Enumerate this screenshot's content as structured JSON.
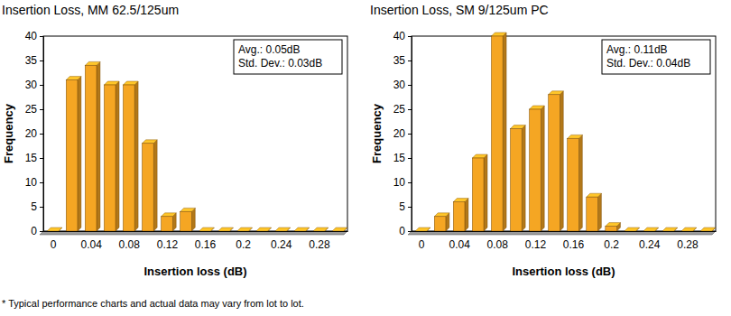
{
  "chart_data": [
    {
      "type": "bar",
      "title": "Insertion Loss, MM 62.5/125um",
      "x_label": "Insertion loss (dB)",
      "y_label": "Frequency",
      "x": [
        0,
        0.02,
        0.04,
        0.06,
        0.08,
        0.1,
        0.12,
        0.14,
        0.16,
        0.18,
        0.2,
        0.22,
        0.24,
        0.26,
        0.28,
        0.3
      ],
      "values": [
        0,
        31,
        34,
        30,
        30,
        18,
        3,
        4,
        0,
        0,
        0,
        0,
        0,
        0,
        0,
        0
      ],
      "color": "#f5a623",
      "xlim": [
        -0.01,
        0.31
      ],
      "xticks": [
        0,
        0.04,
        0.08,
        0.12,
        0.16,
        0.2,
        0.24,
        0.28
      ],
      "ylim": [
        0,
        40
      ],
      "yticks": [
        0,
        5,
        10,
        15,
        20,
        25,
        30,
        35,
        40
      ],
      "annotations": [
        "Avg.: 0.05dB",
        "Std. Dev.: 0.03dB"
      ]
    },
    {
      "type": "bar",
      "title": "Insertion Loss, SM 9/125um PC",
      "x_label": "Insertion loss (dB)",
      "y_label": "Frequency",
      "x": [
        0,
        0.02,
        0.04,
        0.06,
        0.08,
        0.1,
        0.12,
        0.14,
        0.16,
        0.18,
        0.2,
        0.22,
        0.24,
        0.26,
        0.28,
        0.3
      ],
      "values": [
        0,
        3,
        6,
        15,
        40,
        21,
        25,
        28,
        19,
        7,
        1,
        0,
        0,
        0,
        0,
        0
      ],
      "color": "#f5a623",
      "xlim": [
        -0.01,
        0.31
      ],
      "xticks": [
        0,
        0.04,
        0.08,
        0.12,
        0.16,
        0.2,
        0.24,
        0.28
      ],
      "ylim": [
        0,
        40
      ],
      "yticks": [
        0,
        5,
        10,
        15,
        20,
        25,
        30,
        35,
        40
      ],
      "annotations": [
        "Avg.: 0.11dB",
        "Std. Dev.: 0.04dB"
      ]
    }
  ],
  "footnote": "* Typical performance charts and actual data may vary from lot to lot."
}
